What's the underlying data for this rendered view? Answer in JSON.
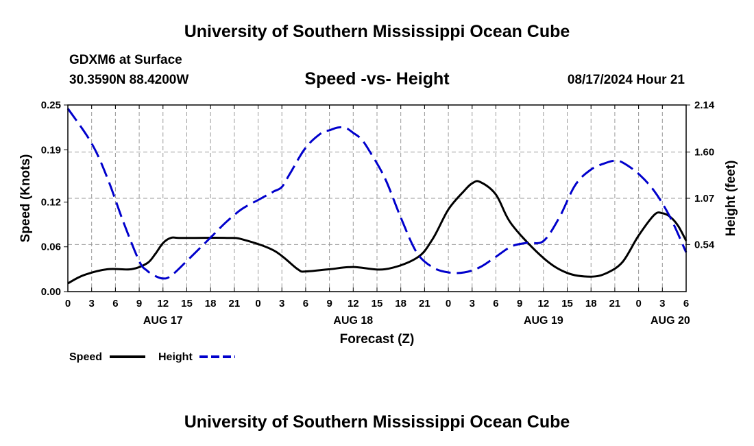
{
  "header": {
    "title": "University of Southern Mississippi Ocean Cube",
    "station": "GDXM6 at Surface",
    "coordinates": "30.3590N  88.4200W",
    "chart_title": "Speed -vs- Height",
    "datetime": "08/17/2024 Hour 21"
  },
  "footer": {
    "title": "University of Southern Mississippi Ocean Cube"
  },
  "colors": {
    "speed": "#000000",
    "height": "#0000cc",
    "grid": "#999999"
  },
  "chart_data": {
    "type": "line",
    "title": "Speed -vs- Height",
    "xlabel": "Forecast (Z)",
    "ylabel": "Speed (Knots)",
    "y2label": "Height (feet)",
    "grid": true,
    "legend_position": "bottom-left",
    "x_range_hours": [
      0,
      78
    ],
    "x_ticks": [
      {
        "h": 0,
        "label": "0"
      },
      {
        "h": 3,
        "label": "3"
      },
      {
        "h": 6,
        "label": "6"
      },
      {
        "h": 9,
        "label": "9"
      },
      {
        "h": 12,
        "label": "12"
      },
      {
        "h": 15,
        "label": "15"
      },
      {
        "h": 18,
        "label": "18"
      },
      {
        "h": 21,
        "label": "21"
      },
      {
        "h": 24,
        "label": "0"
      },
      {
        "h": 27,
        "label": "3"
      },
      {
        "h": 30,
        "label": "6"
      },
      {
        "h": 33,
        "label": "9"
      },
      {
        "h": 36,
        "label": "12"
      },
      {
        "h": 39,
        "label": "15"
      },
      {
        "h": 42,
        "label": "18"
      },
      {
        "h": 45,
        "label": "21"
      },
      {
        "h": 48,
        "label": "0"
      },
      {
        "h": 51,
        "label": "3"
      },
      {
        "h": 54,
        "label": "6"
      },
      {
        "h": 57,
        "label": "9"
      },
      {
        "h": 60,
        "label": "12"
      },
      {
        "h": 63,
        "label": "15"
      },
      {
        "h": 66,
        "label": "18"
      },
      {
        "h": 69,
        "label": "21"
      },
      {
        "h": 72,
        "label": "0"
      },
      {
        "h": 75,
        "label": "3"
      },
      {
        "h": 78,
        "label": "6"
      }
    ],
    "date_labels": [
      {
        "h": 12,
        "label": "AUG 17"
      },
      {
        "h": 36,
        "label": "AUG 18"
      },
      {
        "h": 60,
        "label": "AUG 19"
      },
      {
        "h": 76,
        "label": "AUG 20"
      }
    ],
    "y_left": {
      "range": [
        0,
        0.25
      ],
      "ticks": [
        0.0,
        0.06,
        0.12,
        0.19,
        0.25
      ],
      "tick_labels": [
        "0.00",
        "0.06",
        "0.12",
        "0.19",
        "0.25"
      ]
    },
    "y_right": {
      "range": [
        0,
        2.14
      ],
      "ticks": [
        0.54,
        1.07,
        1.6,
        2.14
      ],
      "tick_labels": [
        "0.54",
        "1.07",
        "1.60",
        "2.14"
      ]
    },
    "series": [
      {
        "name": "Speed",
        "axis": "left",
        "style": "solid",
        "x": [
          0,
          2,
          5,
          8,
          10,
          11,
          12,
          13,
          14,
          16,
          20,
          22,
          26,
          29,
          30,
          33,
          36,
          40,
          44,
          46,
          48,
          50,
          51,
          52,
          54,
          56,
          60,
          63,
          66,
          68,
          70,
          72,
          74,
          75,
          76,
          77,
          78
        ],
        "y": [
          0.011,
          0.022,
          0.03,
          0.03,
          0.038,
          0.05,
          0.065,
          0.072,
          0.072,
          0.072,
          0.072,
          0.07,
          0.055,
          0.03,
          0.027,
          0.03,
          0.033,
          0.03,
          0.045,
          0.07,
          0.11,
          0.135,
          0.145,
          0.147,
          0.13,
          0.09,
          0.045,
          0.025,
          0.02,
          0.025,
          0.04,
          0.075,
          0.103,
          0.105,
          0.1,
          0.088,
          0.068
        ]
      },
      {
        "name": "Height",
        "axis": "right",
        "style": "dashed",
        "x": [
          0,
          3,
          5,
          7,
          9,
          10,
          11,
          12,
          13,
          15,
          18,
          20,
          22,
          24,
          25,
          26,
          27,
          28,
          30,
          32,
          33,
          34,
          35,
          36,
          37,
          38,
          40,
          42,
          44,
          46,
          48,
          50,
          52,
          54,
          56,
          58,
          60,
          62,
          64,
          66,
          68,
          69,
          70,
          72,
          74,
          76,
          78
        ],
        "y": [
          2.1,
          1.7,
          1.3,
          0.8,
          0.35,
          0.24,
          0.18,
          0.15,
          0.18,
          0.35,
          0.62,
          0.8,
          0.95,
          1.05,
          1.1,
          1.15,
          1.2,
          1.35,
          1.65,
          1.82,
          1.85,
          1.88,
          1.88,
          1.82,
          1.75,
          1.62,
          1.3,
          0.85,
          0.45,
          0.28,
          0.22,
          0.22,
          0.28,
          0.4,
          0.52,
          0.56,
          0.58,
          0.85,
          1.22,
          1.4,
          1.48,
          1.5,
          1.48,
          1.35,
          1.15,
          0.85,
          0.45
        ]
      }
    ]
  }
}
